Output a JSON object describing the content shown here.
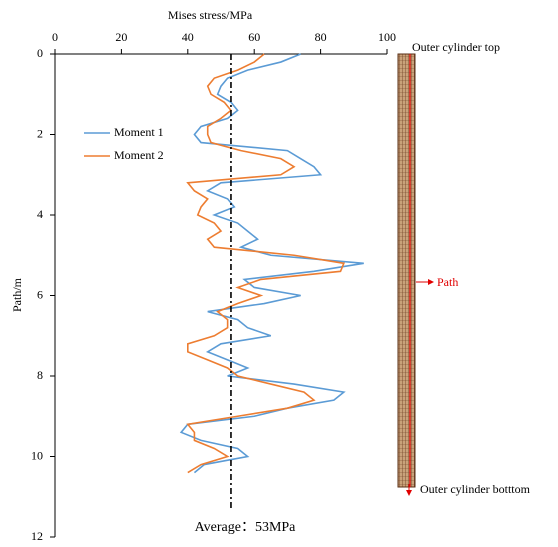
{
  "chart_data": {
    "type": "line",
    "x_label": "Path/m",
    "y_label": "Mises stress/MPa",
    "x": [
      0,
      0.2,
      0.4,
      0.6,
      0.8,
      1.0,
      1.2,
      1.4,
      1.6,
      1.8,
      2.0,
      2.2,
      2.4,
      2.6,
      2.8,
      3.0,
      3.2,
      3.4,
      3.6,
      3.8,
      4.0,
      4.2,
      4.4,
      4.6,
      4.8,
      5.0,
      5.2,
      5.4,
      5.6,
      5.8,
      6.0,
      6.2,
      6.4,
      6.6,
      6.8,
      7.0,
      7.2,
      7.4,
      7.6,
      7.8,
      8.0,
      8.2,
      8.4,
      8.6,
      8.8,
      9.0,
      9.2,
      9.4,
      9.6,
      9.8,
      10.0,
      10.2,
      10.4
    ],
    "series": [
      {
        "name": "Moment 1",
        "color": "#5b9bd5",
        "values": [
          74,
          68,
          58,
          52,
          50,
          49,
          53,
          55,
          52,
          44,
          42,
          44,
          70,
          74,
          78,
          80,
          50,
          46,
          52,
          54,
          48,
          55,
          58,
          61,
          56,
          65,
          93,
          78,
          57,
          60,
          74,
          63,
          46,
          55,
          58,
          65,
          50,
          46,
          52,
          58,
          52,
          72,
          87,
          84,
          70,
          60,
          40,
          38,
          44,
          55,
          58,
          45,
          42
        ]
      },
      {
        "name": "Moment 2",
        "color": "#ed7d31",
        "values": [
          63,
          60,
          55,
          48,
          46,
          47,
          51,
          53,
          50,
          46,
          46,
          47,
          56,
          68,
          72,
          68,
          40,
          42,
          46,
          44,
          43,
          48,
          50,
          46,
          48,
          72,
          87,
          86,
          62,
          55,
          62,
          55,
          49,
          52,
          52,
          48,
          40,
          40,
          46,
          52,
          55,
          65,
          75,
          78,
          70,
          55,
          40,
          42,
          42,
          48,
          52,
          44,
          40
        ]
      }
    ],
    "xlim": [
      0,
      12
    ],
    "xticks": [
      0,
      2,
      4,
      6,
      8,
      10,
      12
    ],
    "ylim": [
      0,
      100
    ],
    "yticks": [
      0,
      20,
      40,
      60,
      80,
      100
    ],
    "average": {
      "value": 53,
      "label": "Average：53MPa"
    },
    "cylinder_labels": {
      "top": "Outer cylinder top",
      "path": "Path",
      "bottom": "Outer cylinder botttom"
    }
  }
}
